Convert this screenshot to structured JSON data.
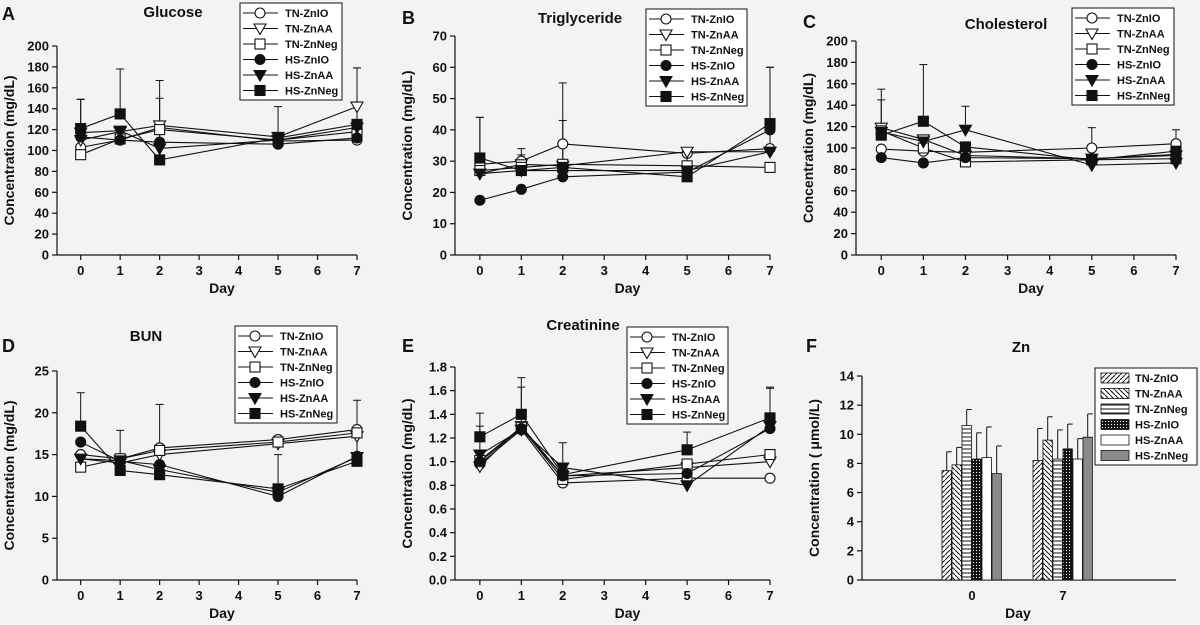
{
  "figure_colors": {
    "background": "#f3f3f3",
    "ink": "#111111"
  },
  "chart_data": [
    {
      "panel": "A",
      "type": "line",
      "title": "Glucose",
      "xlabel": "Day",
      "ylabel": "Concentration (mg/dL)",
      "xlim": [
        -0.6,
        7
      ],
      "ylim": [
        0,
        200
      ],
      "xticks": [
        0,
        1,
        2,
        3,
        4,
        5,
        6,
        7
      ],
      "yticks": [
        0,
        20,
        40,
        60,
        80,
        100,
        120,
        140,
        160,
        180,
        200
      ],
      "legend_position": "top-right",
      "x": [
        0,
        1,
        2,
        5,
        7
      ],
      "series": [
        {
          "name": "TN-ZnIO",
          "marker": "circle-open",
          "values": [
            103,
            110,
            122,
            109,
            110
          ],
          "err": [
            0,
            0,
            0,
            0,
            0
          ]
        },
        {
          "name": "TN-ZnAA",
          "marker": "triangle-down-open",
          "values": [
            110,
            118,
            124,
            113,
            142
          ],
          "err": [
            0,
            0,
            0,
            0,
            0
          ]
        },
        {
          "name": "TN-ZnNeg",
          "marker": "square-open",
          "values": [
            96,
            111,
            120,
            110,
            118
          ],
          "err": [
            0,
            0,
            0,
            0,
            0
          ]
        },
        {
          "name": "HS-ZnIO",
          "marker": "circle-filled",
          "values": [
            113,
            110,
            108,
            106,
            112
          ],
          "err": [
            0,
            0,
            0,
            0,
            0
          ]
        },
        {
          "name": "HS-ZnAA",
          "marker": "triangle-down-filled",
          "values": [
            117,
            119,
            102,
            110,
            122
          ],
          "err": [
            32,
            0,
            48,
            0,
            57
          ]
        },
        {
          "name": "HS-ZnNeg",
          "marker": "square-filled",
          "values": [
            121,
            135,
            91,
            112,
            125
          ],
          "err": [
            28,
            43,
            76,
            30,
            54
          ]
        }
      ]
    },
    {
      "panel": "B",
      "type": "line",
      "title": "Triglyceride",
      "xlabel": "Day",
      "ylabel": "Concentration (mg/dL)",
      "xlim": [
        -0.6,
        7
      ],
      "ylim": [
        0,
        70
      ],
      "xticks": [
        0,
        1,
        2,
        3,
        4,
        5,
        6,
        7
      ],
      "yticks": [
        0,
        10,
        20,
        30,
        40,
        50,
        60,
        70
      ],
      "legend_position": "top-right",
      "x": [
        0,
        1,
        2,
        5,
        7
      ],
      "series": [
        {
          "name": "TN-ZnIO",
          "marker": "circle-open",
          "values": [
            29,
            30,
            35.5,
            32.5,
            34
          ],
          "err": [
            0,
            0,
            0,
            0,
            0
          ]
        },
        {
          "name": "TN-ZnAA",
          "marker": "triangle-down-open",
          "values": [
            26,
            29,
            28.5,
            33,
            33
          ],
          "err": [
            0,
            0,
            0,
            0,
            0
          ]
        },
        {
          "name": "TN-ZnNeg",
          "marker": "square-open",
          "values": [
            27,
            28,
            29,
            28.5,
            28
          ],
          "err": [
            0,
            0,
            0,
            0,
            0
          ]
        },
        {
          "name": "HS-ZnIO",
          "marker": "circle-filled",
          "values": [
            17.5,
            21,
            25,
            26.5,
            40
          ],
          "err": [
            0,
            0,
            0,
            0,
            0
          ]
        },
        {
          "name": "HS-ZnAA",
          "marker": "triangle-down-filled",
          "values": [
            26,
            27,
            27,
            27,
            33
          ],
          "err": [
            18,
            7,
            28,
            0,
            27
          ]
        },
        {
          "name": "HS-ZnNeg",
          "marker": "square-filled",
          "values": [
            31,
            27,
            28,
            25,
            42
          ],
          "err": [
            13,
            5,
            15,
            9,
            18
          ]
        }
      ]
    },
    {
      "panel": "C",
      "type": "line",
      "title": "Cholesterol",
      "xlabel": "Day",
      "ylabel": "Concentration (mg/dL)",
      "xlim": [
        -0.6,
        7
      ],
      "ylim": [
        0,
        200
      ],
      "xticks": [
        0,
        1,
        2,
        3,
        4,
        5,
        6,
        7
      ],
      "yticks": [
        0,
        20,
        40,
        60,
        80,
        100,
        120,
        140,
        160,
        180,
        200
      ],
      "legend_position": "top-right",
      "x": [
        0,
        1,
        2,
        5,
        7
      ],
      "series": [
        {
          "name": "TN-ZnIO",
          "marker": "circle-open",
          "values": [
            99,
            97,
            96,
            100,
            104
          ],
          "err": [
            0,
            0,
            0,
            0,
            0
          ]
        },
        {
          "name": "TN-ZnAA",
          "marker": "triangle-down-open",
          "values": [
            119,
            108,
            93,
            90,
            93
          ],
          "err": [
            0,
            0,
            0,
            0,
            0
          ]
        },
        {
          "name": "TN-ZnNeg",
          "marker": "square-open",
          "values": [
            116,
            100,
            87,
            89,
            90
          ],
          "err": [
            0,
            0,
            0,
            0,
            0
          ]
        },
        {
          "name": "HS-ZnIO",
          "marker": "circle-filled",
          "values": [
            91,
            86,
            91,
            90,
            94
          ],
          "err": [
            0,
            0,
            0,
            0,
            0
          ]
        },
        {
          "name": "HS-ZnAA",
          "marker": "triangle-down-filled",
          "values": [
            115,
            106,
            117,
            84,
            86
          ],
          "err": [
            30,
            0,
            22,
            35,
            13
          ]
        },
        {
          "name": "HS-ZnNeg",
          "marker": "square-filled",
          "values": [
            112,
            125,
            101,
            89,
            97
          ],
          "err": [
            43,
            53,
            0,
            0,
            20
          ]
        }
      ]
    },
    {
      "panel": "D",
      "type": "line",
      "title": "BUN",
      "xlabel": "Day",
      "ylabel": "Concentration (mg/dL)",
      "xlim": [
        -0.6,
        7
      ],
      "ylim": [
        0,
        25
      ],
      "xticks": [
        0,
        1,
        2,
        3,
        4,
        5,
        6,
        7
      ],
      "yticks": [
        0,
        5,
        10,
        15,
        20,
        25
      ],
      "legend_position": "top-right",
      "x": [
        0,
        1,
        2,
        5,
        7
      ],
      "series": [
        {
          "name": "TN-ZnIO",
          "marker": "circle-open",
          "values": [
            15,
            14.5,
            15.8,
            16.8,
            18
          ],
          "err": [
            0,
            0,
            0,
            0,
            0
          ]
        },
        {
          "name": "TN-ZnAA",
          "marker": "triangle-down-open",
          "values": [
            14.5,
            14,
            15,
            16.3,
            17.2
          ],
          "err": [
            0,
            0,
            0,
            0,
            0
          ]
        },
        {
          "name": "TN-ZnNeg",
          "marker": "square-open",
          "values": [
            13.5,
            14.5,
            15.5,
            16.5,
            17.6
          ],
          "err": [
            0,
            0,
            0,
            0,
            0
          ]
        },
        {
          "name": "HS-ZnIO",
          "marker": "circle-filled",
          "values": [
            16.5,
            14.2,
            13.8,
            10,
            14.8
          ],
          "err": [
            0,
            0,
            0,
            0,
            0
          ]
        },
        {
          "name": "HS-ZnAA",
          "marker": "triangle-down-filled",
          "values": [
            14.5,
            14.3,
            13.2,
            10.5,
            14.7
          ],
          "err": [
            0,
            3.6,
            7.8,
            4.5,
            6.8
          ]
        },
        {
          "name": "HS-ZnNeg",
          "marker": "square-filled",
          "values": [
            18.4,
            13.1,
            12.6,
            10.9,
            14.2
          ],
          "err": [
            4,
            0,
            0,
            0,
            0
          ]
        }
      ]
    },
    {
      "panel": "E",
      "type": "line",
      "title": "Creatinine",
      "xlabel": "Day",
      "ylabel": "Concentration (mg/dL)",
      "xlim": [
        -0.6,
        7
      ],
      "ylim": [
        0,
        1.8
      ],
      "xticks": [
        0,
        1,
        2,
        3,
        4,
        5,
        6,
        7
      ],
      "yticks": [
        0.0,
        0.2,
        0.4,
        0.6,
        0.8,
        1.0,
        1.2,
        1.4,
        1.6,
        1.8
      ],
      "ytick_labels": [
        "0.0",
        "0.2",
        "0.4",
        "0.6",
        "0.8",
        "1.0",
        "1.2",
        "1.4",
        "1.6",
        "1.8"
      ],
      "legend_position": "top-right",
      "x": [
        0,
        1,
        2,
        5,
        7
      ],
      "series": [
        {
          "name": "TN-ZnIO",
          "marker": "circle-open",
          "values": [
            0.98,
            1.27,
            0.82,
            0.86,
            0.86
          ],
          "err": [
            0,
            0,
            0,
            0,
            0
          ]
        },
        {
          "name": "TN-ZnAA",
          "marker": "triangle-down-open",
          "values": [
            0.96,
            1.3,
            0.88,
            0.95,
            1.0
          ],
          "err": [
            0,
            0,
            0,
            0,
            0
          ]
        },
        {
          "name": "TN-ZnNeg",
          "marker": "square-open",
          "values": [
            1.01,
            1.29,
            0.85,
            0.98,
            1.06
          ],
          "err": [
            0,
            0,
            0,
            0,
            0
          ]
        },
        {
          "name": "HS-ZnIO",
          "marker": "circle-filled",
          "values": [
            1.0,
            1.28,
            0.88,
            0.9,
            1.28
          ],
          "err": [
            0,
            0,
            0,
            0,
            0
          ]
        },
        {
          "name": "HS-ZnAA",
          "marker": "triangle-down-filled",
          "values": [
            1.06,
            1.27,
            0.95,
            0.8,
            1.3
          ],
          "err": [
            0.24,
            0.36,
            0.21,
            0,
            0.32
          ]
        },
        {
          "name": "HS-ZnNeg",
          "marker": "square-filled",
          "values": [
            1.21,
            1.4,
            0.89,
            1.1,
            1.37
          ],
          "err": [
            0.2,
            0.31,
            0,
            0.15,
            0.26
          ]
        }
      ]
    },
    {
      "panel": "F",
      "type": "bar",
      "title": "Zn",
      "xlabel": "Day",
      "ylabel": "Concentration (μmol/L)",
      "ylabel_display": "Concentration ( μmol/L)",
      "ylim": [
        0,
        14
      ],
      "yticks": [
        0,
        2,
        4,
        6,
        8,
        10,
        12,
        14
      ],
      "categories": [
        "0",
        "7"
      ],
      "legend_position": "top-right",
      "series": [
        {
          "name": "TN-ZnIO",
          "pattern": "forward-diagonal",
          "values": [
            7.5,
            8.2
          ],
          "err": [
            1.3,
            2.2
          ]
        },
        {
          "name": "TN-ZnAA",
          "pattern": "backward-diagonal",
          "values": [
            7.9,
            9.6
          ],
          "err": [
            1.2,
            1.6
          ]
        },
        {
          "name": "TN-ZnNeg",
          "pattern": "horizontal",
          "values": [
            10.6,
            8.3
          ],
          "err": [
            1.1,
            2.0
          ]
        },
        {
          "name": "HS-ZnIO",
          "pattern": "dots",
          "values": [
            8.3,
            9.0
          ],
          "err": [
            1.8,
            1.7
          ]
        },
        {
          "name": "HS-ZnAA",
          "pattern": "white",
          "values": [
            8.4,
            8.3
          ],
          "err": [
            2.1,
            1.4
          ]
        },
        {
          "name": "HS-ZnNeg",
          "pattern": "gray",
          "values": [
            7.3,
            9.8
          ],
          "err": [
            1.9,
            1.6
          ]
        }
      ]
    }
  ]
}
